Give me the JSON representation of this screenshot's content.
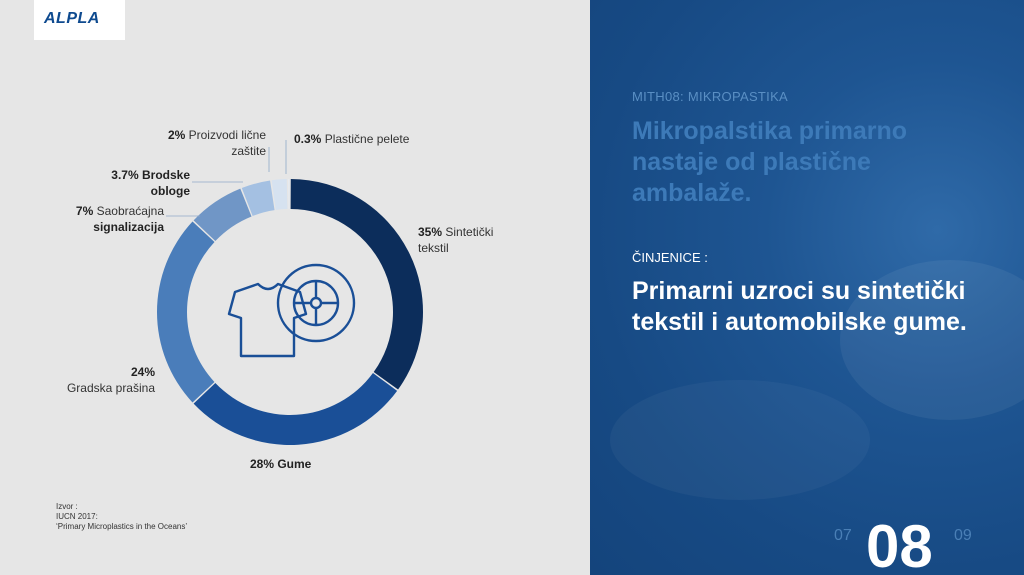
{
  "logo": {
    "text": "ALPLA"
  },
  "chart_data": {
    "type": "pie",
    "categories": [
      "Sintetički tekstil",
      "Gume",
      "Gradska prašina",
      "Saobraćajna signalizacija",
      "Brodske obloge",
      "Proizvodi lične zaštite",
      "Plastične pelete"
    ],
    "values": [
      35,
      28,
      24,
      7,
      3.7,
      2,
      0.3
    ],
    "colors": [
      "#0c2d5b",
      "#1a4f97",
      "#4a7dba",
      "#7096c6",
      "#a4c0e2",
      "#d6e2f0",
      "#e6ecf4"
    ],
    "labels": [
      {
        "pct": "35%",
        "name": "Sintetički",
        "name2": "tekstil"
      },
      {
        "pct": "28% Gume",
        "name": ""
      },
      {
        "pct": "24%",
        "name": "Gradska prašina"
      },
      {
        "pct": "7%",
        "name": "Saobraćajna",
        "name2": "signalizacija"
      },
      {
        "pct": "3.7% Brodske",
        "name2": "obloge"
      },
      {
        "pct": "2%",
        "name": "Proizvodi lične",
        "name2": "zaštite"
      },
      {
        "pct": "0.3%",
        "name": "Plastične pelete"
      }
    ]
  },
  "source": {
    "line1": "Izvor :",
    "line2": "IUCN 2017:",
    "line3": "‘Primary Microplastics in the Oceans’"
  },
  "right": {
    "kicker": "MITH08: MIKROPASTIKA",
    "headline": "Mikropalstika primarno nastaje od plastične ambalaže.",
    "facts_label": "ČINJENICE :",
    "facts": "Primarni uzroci su sintetički tekstil i automobilske gume.",
    "page_prev": "07",
    "page_current": "08",
    "page_next": "09"
  }
}
